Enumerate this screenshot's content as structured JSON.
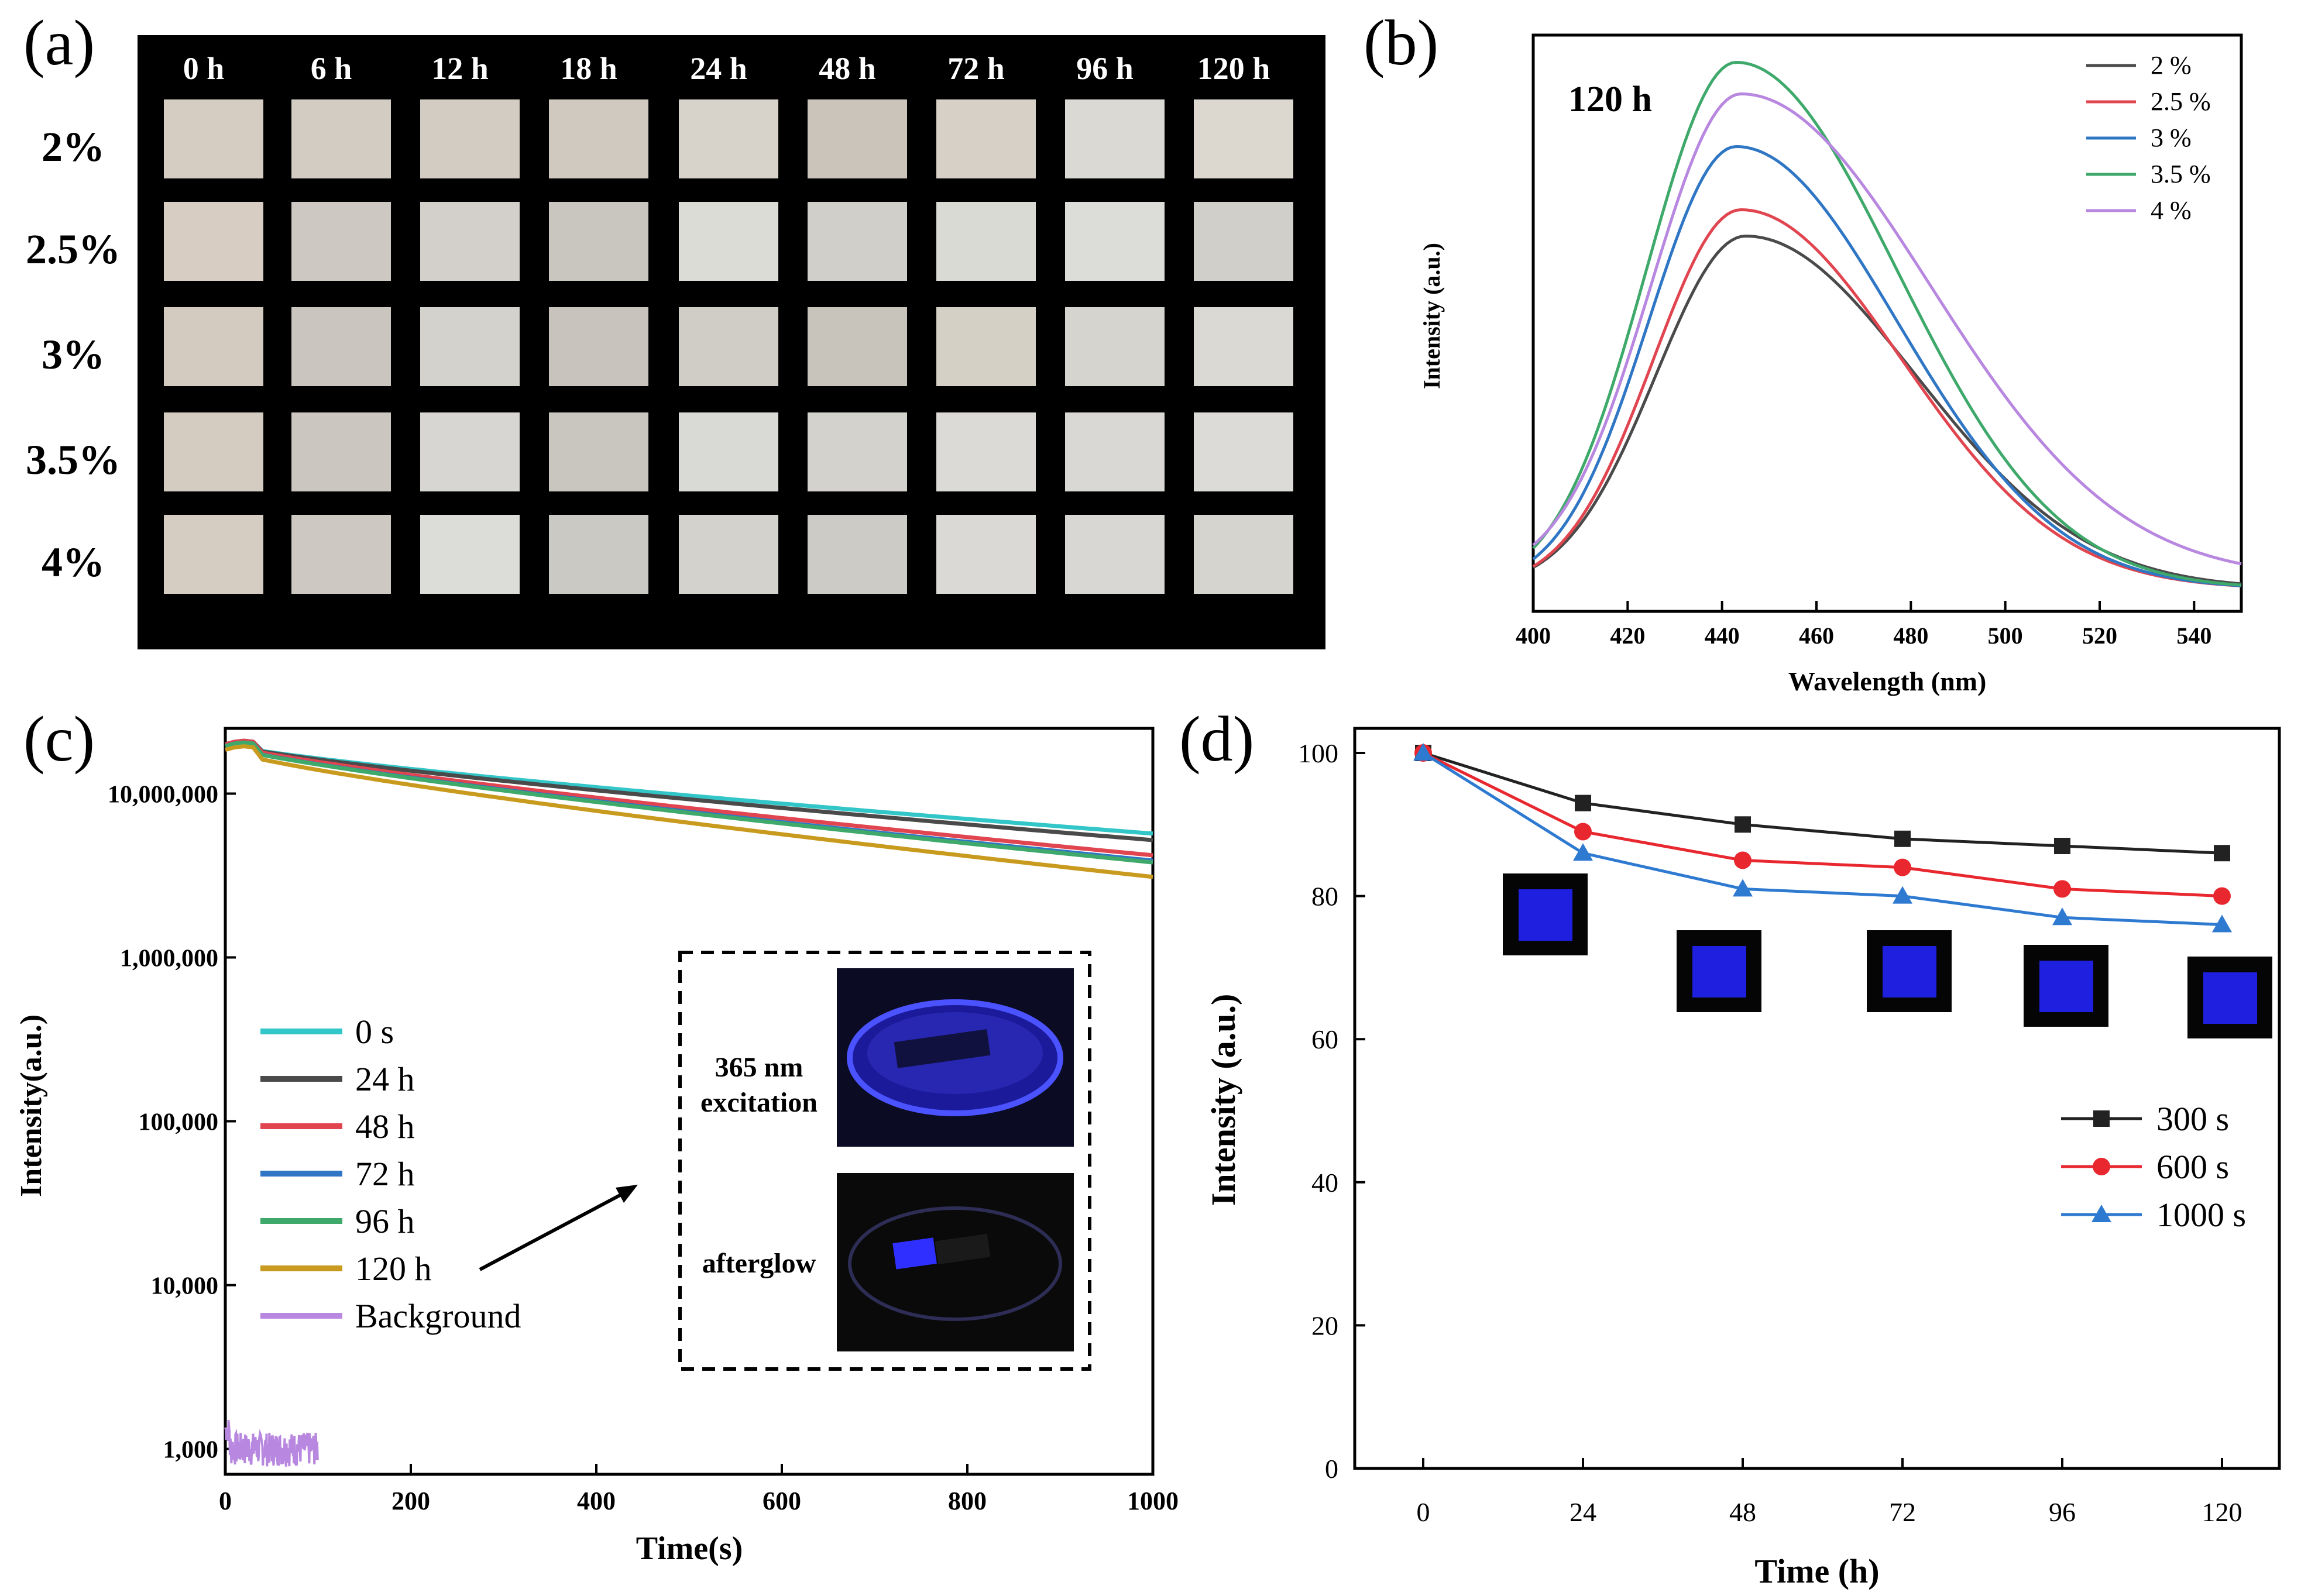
{
  "panel_labels": [
    "(a)",
    "(b)",
    "(c)",
    "(d)"
  ],
  "chart_data": [
    {
      "panel": "(a)",
      "type": "table",
      "title": "",
      "columns": [
        "0 h",
        "6 h",
        "12 h",
        "18 h",
        "24 h",
        "48 h",
        "72 h",
        "96 h",
        "120 h"
      ],
      "rows": [
        "2%",
        "2.5%",
        "3%",
        "3.5%",
        "4%"
      ],
      "cell_colors": [
        [
          "#d6cdc2",
          "#d3ccc3",
          "#d3ccc2",
          "#cfc9bf",
          "#d7d2ca",
          "#cbc4bb",
          "#d6d0c7",
          "#dbd9d3",
          "#dcd8cf"
        ],
        [
          "#d8cdc2",
          "#cdc8c1",
          "#d3d0cb",
          "#c9c6c0",
          "#dcdcd7",
          "#d0cfca",
          "#dadad5",
          "#dcdcd8",
          "#d1cfca"
        ],
        [
          "#d3cbc0",
          "#cac6bf",
          "#d4d2cc",
          "#c8c4bd",
          "#d0cdc6",
          "#c8c4bb",
          "#d5d0c6",
          "#d6d4cf",
          "#dbd9d4"
        ],
        [
          "#d5ccc1",
          "#cbc6bf",
          "#d7d6d2",
          "#c9c6c0",
          "#d9d9d5",
          "#d3d2cd",
          "#dbdad6",
          "#d9d8d4",
          "#dcdbd7"
        ],
        [
          "#d5cdc2",
          "#cdc9c2",
          "#dcdcd9",
          "#cbc9c4",
          "#d3d2cd",
          "#cdcbc6",
          "#dad9d5",
          "#d8d7d3",
          "#d6d4cf"
        ]
      ]
    },
    {
      "panel": "(b)",
      "type": "line",
      "title": "120 h",
      "xlabel": "Wavelength (nm)",
      "ylabel": "Intensity (a.u.)",
      "xlim": [
        400,
        550
      ],
      "ylim": [
        0,
        1.0
      ],
      "xticks": [
        400,
        420,
        440,
        460,
        480,
        500,
        520,
        540
      ],
      "y_ticklabels_shown": false,
      "legend_position": "top-right",
      "series": [
        {
          "name": "2 %",
          "color": "#4a4a4a",
          "peak": 0.67,
          "center": 445,
          "sigL": 19,
          "sigR": 36,
          "base": 0.0
        },
        {
          "name": "2.5 %",
          "color": "#e04550",
          "peak": 0.72,
          "center": 444,
          "sigL": 18.5,
          "sigR": 34,
          "base": 0.0
        },
        {
          "name": "3 %",
          "color": "#2f76c4",
          "peak": 0.84,
          "center": 443,
          "sigL": 18.5,
          "sigR": 34,
          "base": 0.0
        },
        {
          "name": "3.5 %",
          "color": "#3fa96b",
          "peak": 1.0,
          "center": 443,
          "sigL": 19,
          "sigR": 34,
          "base": 0.0
        },
        {
          "name": "4 %",
          "color": "#b887e0",
          "peak": 0.94,
          "center": 444,
          "sigL": 19,
          "sigR": 40,
          "base": 0.02
        }
      ]
    },
    {
      "panel": "(c)",
      "type": "line",
      "title": "",
      "xlabel": "Time(s)",
      "ylabel": "Intensity(a.u.)",
      "xlim": [
        0,
        1000
      ],
      "ylim": [
        700,
        25000000
      ],
      "yscale": "log",
      "xticks": [
        0,
        200,
        400,
        600,
        800,
        1000
      ],
      "yticks": [
        1000,
        10000,
        100000,
        1000000,
        10000000
      ],
      "yticklabels": [
        "1,000",
        "10,000",
        "100,000",
        "1,000,000",
        "10,000,000"
      ],
      "legend_position": "center-left",
      "series": [
        {
          "name": "0 s",
          "color": "#33c6c8",
          "start": 20000000,
          "end": 5700000
        },
        {
          "name": "24 h",
          "color": "#4a4a4a",
          "start": 20000000,
          "end": 5200000
        },
        {
          "name": "48 h",
          "color": "#e04550",
          "start": 20000000,
          "end": 4200000
        },
        {
          "name": "72 h",
          "color": "#2f76c4",
          "start": 19500000,
          "end": 3900000
        },
        {
          "name": "96 h",
          "color": "#3fa96b",
          "start": 19500000,
          "end": 3800000
        },
        {
          "name": "120 h",
          "color": "#c89a1e",
          "start": 18500000,
          "end": 3100000
        },
        {
          "name": "Background",
          "color": "#b887e0",
          "x_range": [
            0,
            100
          ],
          "level": 1000
        }
      ],
      "inset": {
        "labels": [
          "365 nm",
          "excitation",
          "afterglow"
        ]
      }
    },
    {
      "panel": "(d)",
      "type": "line",
      "title": "",
      "xlabel": "Time (h)",
      "ylabel": "Intensity (a.u.)",
      "ylim": [
        0,
        105
      ],
      "xticks": [
        0,
        24,
        48,
        72,
        96,
        120
      ],
      "yticks": [
        0,
        20,
        40,
        60,
        80,
        100
      ],
      "legend_position": "bottom-right",
      "categories": [
        0,
        24,
        48,
        72,
        96,
        120
      ],
      "series": [
        {
          "name": "300 s",
          "color": "#222222",
          "marker": "square",
          "values": [
            100,
            93,
            90,
            88,
            87,
            86
          ]
        },
        {
          "name": "600 s",
          "color": "#e8272f",
          "marker": "circle",
          "values": [
            100,
            89,
            85,
            84,
            81,
            80
          ]
        },
        {
          "name": "1000 s",
          "color": "#2f7ad1",
          "marker": "triangle",
          "values": [
            100,
            86,
            81,
            80,
            77,
            76
          ]
        }
      ]
    }
  ]
}
